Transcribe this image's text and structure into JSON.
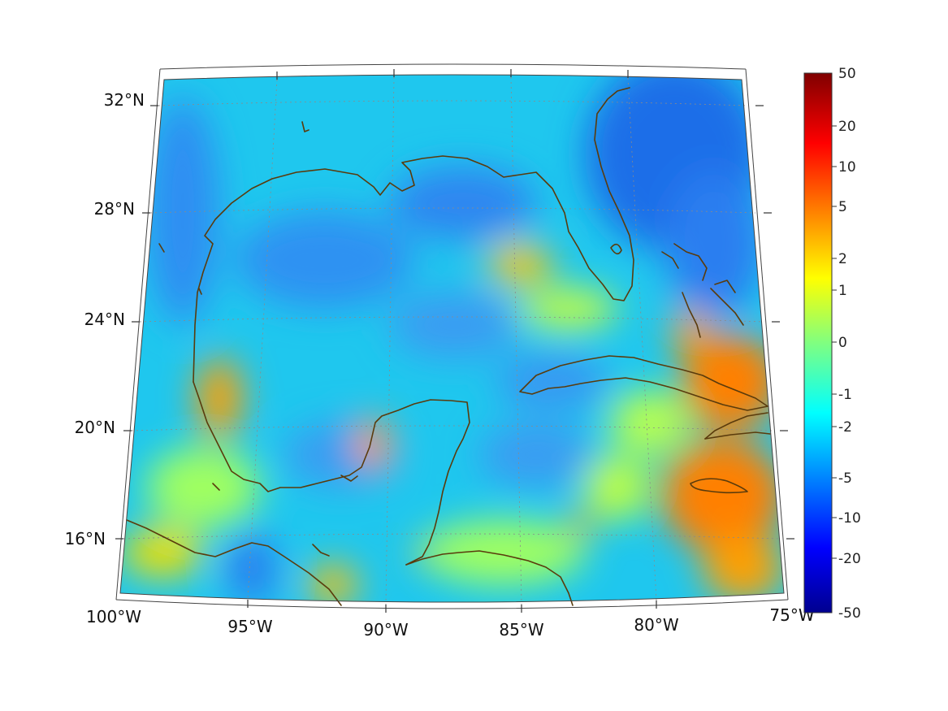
{
  "map": {
    "projection": "conic",
    "lon_range": [
      -100,
      -75
    ],
    "lat_range": [
      14,
      33
    ],
    "lon_ticks": [
      "100°W",
      "95°W",
      "90°W",
      "85°W",
      "80°W",
      "75°W"
    ],
    "lat_ticks": [
      "32°N",
      "28°N",
      "24°N",
      "20°N",
      "16°N"
    ],
    "coastline_color": "#5a3b0c",
    "grid": "dotted"
  },
  "colorbar": {
    "colormap": "jet",
    "ticks": [
      "50",
      "20",
      "10",
      "5",
      "2",
      "1",
      "0",
      "-1",
      "-2",
      "-5",
      "-10",
      "-20",
      "-50"
    ]
  }
}
